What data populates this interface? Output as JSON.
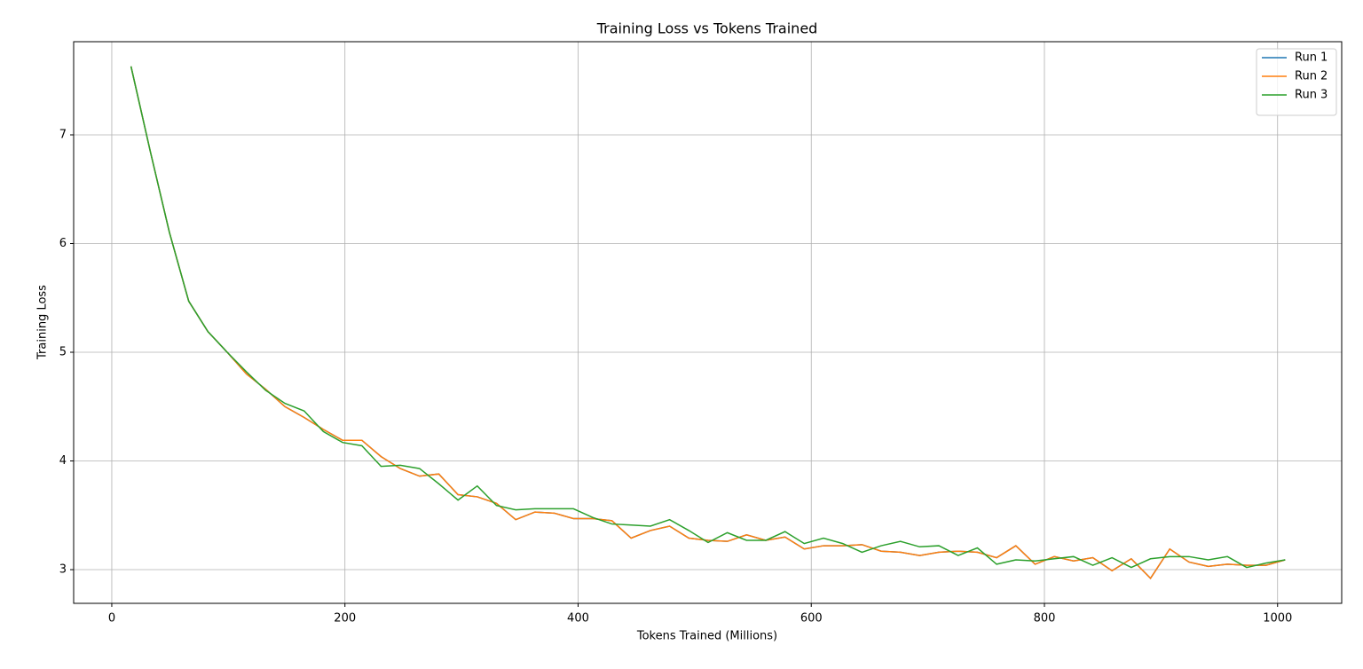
{
  "chart_data": {
    "type": "line",
    "title": "Training Loss vs Tokens Trained",
    "xlabel": "Tokens Trained (Millions)",
    "ylabel": "Training Loss",
    "x": [
      16.5,
      33,
      49.5,
      66,
      82.5,
      99,
      115.5,
      132,
      148.5,
      165,
      181.5,
      198,
      214.5,
      231,
      247.5,
      264,
      280.5,
      297,
      313.5,
      330,
      346.5,
      363,
      379.5,
      396,
      412.5,
      429,
      445.5,
      462,
      478.5,
      495,
      511.5,
      528,
      544.5,
      561,
      577.5,
      594,
      610.5,
      627,
      643.5,
      660,
      676.5,
      693,
      709.5,
      726,
      742.5,
      759,
      775.5,
      792,
      808.5,
      825,
      841.5,
      858,
      874.5,
      891,
      907.5,
      924,
      940.5,
      957,
      973.5,
      990,
      1006.5
    ],
    "series": [
      {
        "name": "Run 1",
        "color": "#1f77b4",
        "values": [
          7.63,
          6.85,
          6.1,
          5.47,
          5.19,
          5.0,
          4.8,
          4.66,
          4.5,
          4.4,
          4.29,
          4.19,
          4.19,
          4.04,
          3.93,
          3.86,
          3.88,
          3.69,
          3.67,
          3.61,
          3.46,
          3.53,
          3.52,
          3.47,
          3.47,
          3.45,
          3.29,
          3.36,
          3.4,
          3.29,
          3.27,
          3.26,
          3.32,
          3.27,
          3.3,
          3.19,
          3.22,
          3.22,
          3.23,
          3.17,
          3.16,
          3.13,
          3.16,
          3.17,
          3.16,
          3.11,
          3.22,
          3.05,
          3.12,
          3.08,
          3.11,
          2.99,
          3.1,
          2.92,
          3.19,
          3.07,
          3.03,
          3.05,
          3.04,
          3.04,
          3.09
        ]
      },
      {
        "name": "Run 2",
        "color": "#ff7f0e",
        "values": [
          7.63,
          6.85,
          6.1,
          5.47,
          5.19,
          5.0,
          4.8,
          4.66,
          4.5,
          4.4,
          4.29,
          4.19,
          4.19,
          4.04,
          3.93,
          3.86,
          3.88,
          3.69,
          3.67,
          3.61,
          3.46,
          3.53,
          3.52,
          3.47,
          3.47,
          3.45,
          3.29,
          3.36,
          3.4,
          3.29,
          3.27,
          3.26,
          3.32,
          3.27,
          3.3,
          3.19,
          3.22,
          3.22,
          3.23,
          3.17,
          3.16,
          3.13,
          3.16,
          3.17,
          3.16,
          3.11,
          3.22,
          3.05,
          3.12,
          3.08,
          3.11,
          2.99,
          3.1,
          2.92,
          3.19,
          3.07,
          3.03,
          3.05,
          3.04,
          3.04,
          3.09
        ]
      },
      {
        "name": "Run 3",
        "color": "#2ca02c",
        "values": [
          7.63,
          6.85,
          6.1,
          5.47,
          5.19,
          5.0,
          4.82,
          4.65,
          4.53,
          4.46,
          4.27,
          4.17,
          4.14,
          3.95,
          3.96,
          3.93,
          3.79,
          3.64,
          3.77,
          3.59,
          3.55,
          3.56,
          3.56,
          3.56,
          3.48,
          3.42,
          3.41,
          3.4,
          3.46,
          3.36,
          3.25,
          3.34,
          3.27,
          3.27,
          3.35,
          3.24,
          3.29,
          3.24,
          3.16,
          3.22,
          3.26,
          3.21,
          3.22,
          3.13,
          3.2,
          3.05,
          3.09,
          3.08,
          3.1,
          3.12,
          3.04,
          3.11,
          3.02,
          3.1,
          3.12,
          3.12,
          3.09,
          3.12,
          3.02,
          3.06,
          3.09
        ]
      }
    ],
    "xlim": [
      -32.7,
      1055
    ],
    "ylim": [
      2.69,
      7.857
    ],
    "xticks": [
      0,
      200,
      400,
      600,
      800,
      1000
    ],
    "yticks": [
      3,
      4,
      5,
      6,
      7
    ],
    "grid": true,
    "legend": "upper right"
  }
}
